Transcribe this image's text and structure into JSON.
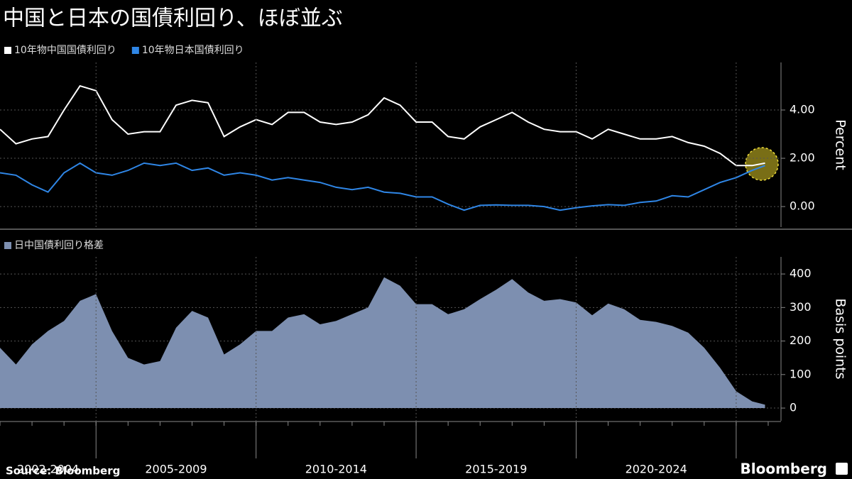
{
  "title": "中国と日本の国債利回り、ほぼ並ぶ",
  "source": "Source: Bloomberg",
  "brand": "Bloomberg",
  "chart_data": [
    {
      "type": "line",
      "y_label": "Percent",
      "x": [
        2002.0,
        2002.5,
        2003.0,
        2003.5,
        2004.0,
        2004.5,
        2005.0,
        2005.5,
        2006.0,
        2006.5,
        2007.0,
        2007.5,
        2008.0,
        2008.5,
        2009.0,
        2009.5,
        2010.0,
        2010.5,
        2011.0,
        2011.5,
        2012.0,
        2012.5,
        2013.0,
        2013.5,
        2014.0,
        2014.5,
        2015.0,
        2015.5,
        2016.0,
        2016.5,
        2017.0,
        2017.5,
        2018.0,
        2018.5,
        2019.0,
        2019.5,
        2020.0,
        2020.5,
        2021.0,
        2021.5,
        2022.0,
        2022.5,
        2023.0,
        2023.5,
        2024.0,
        2024.5,
        2025.0,
        2025.5,
        2025.9
      ],
      "series": [
        {
          "name": "10年物中国国債利回り",
          "color": "#ffffff",
          "values": [
            3.2,
            2.6,
            2.8,
            2.9,
            4.0,
            5.0,
            4.8,
            3.6,
            3.0,
            3.1,
            3.1,
            4.2,
            4.4,
            4.3,
            2.9,
            3.3,
            3.6,
            3.4,
            3.9,
            3.9,
            3.5,
            3.4,
            3.5,
            3.8,
            4.5,
            4.2,
            3.5,
            3.5,
            2.9,
            2.8,
            3.3,
            3.6,
            3.9,
            3.5,
            3.2,
            3.1,
            3.1,
            2.8,
            3.2,
            3.0,
            2.8,
            2.8,
            2.9,
            2.65,
            2.5,
            2.2,
            1.7,
            1.7,
            1.8
          ]
        },
        {
          "name": "10年物日本国債利回り",
          "color": "#2f86e6",
          "values": [
            1.4,
            1.3,
            0.9,
            0.6,
            1.4,
            1.8,
            1.4,
            1.3,
            1.5,
            1.8,
            1.7,
            1.8,
            1.5,
            1.6,
            1.3,
            1.4,
            1.3,
            1.1,
            1.2,
            1.1,
            1.0,
            0.8,
            0.7,
            0.8,
            0.6,
            0.55,
            0.4,
            0.4,
            0.1,
            -0.15,
            0.05,
            0.07,
            0.05,
            0.05,
            0.0,
            -0.15,
            -0.05,
            0.03,
            0.08,
            0.05,
            0.17,
            0.23,
            0.45,
            0.4,
            0.7,
            1.0,
            1.2,
            1.5,
            1.7
          ]
        }
      ],
      "xlim": [
        2002,
        2026.4
      ],
      "ylim": [
        -0.85,
        5.97
      ],
      "yticks": [
        {
          "value": 0,
          "label": "0.00"
        },
        {
          "value": 2,
          "label": "2.00"
        },
        {
          "value": 4,
          "label": "4.00"
        }
      ],
      "grid": true
    },
    {
      "type": "area",
      "y_label": "Basis points",
      "x": [
        2002.0,
        2002.5,
        2003.0,
        2003.5,
        2004.0,
        2004.5,
        2005.0,
        2005.5,
        2006.0,
        2006.5,
        2007.0,
        2007.5,
        2008.0,
        2008.5,
        2009.0,
        2009.5,
        2010.0,
        2010.5,
        2011.0,
        2011.5,
        2012.0,
        2012.5,
        2013.0,
        2013.5,
        2014.0,
        2014.5,
        2015.0,
        2015.5,
        2016.0,
        2016.5,
        2017.0,
        2017.5,
        2018.0,
        2018.5,
        2019.0,
        2019.5,
        2020.0,
        2020.5,
        2021.0,
        2021.5,
        2022.0,
        2022.5,
        2023.0,
        2023.5,
        2024.0,
        2024.5,
        2025.0,
        2025.5,
        2025.9
      ],
      "series": [
        {
          "name": "日中国債利回り格差",
          "color": "#7d8fb0",
          "values": [
            180,
            130,
            190,
            230,
            260,
            320,
            340,
            230,
            150,
            130,
            140,
            240,
            290,
            270,
            160,
            190,
            230,
            230,
            270,
            280,
            250,
            260,
            280,
            300,
            390,
            365,
            310,
            310,
            280,
            295,
            325,
            353,
            385,
            345,
            320,
            325,
            315,
            277,
            312,
            295,
            263,
            257,
            245,
            225,
            180,
            120,
            50,
            20,
            10
          ]
        }
      ],
      "xlim": [
        2002,
        2026.4
      ],
      "ylim": [
        -38,
        451
      ],
      "yticks": [
        0,
        100,
        200,
        300,
        400
      ],
      "grid": true,
      "periods": [
        {
          "start": 2002,
          "end": 2005,
          "label": "2002-2004"
        },
        {
          "start": 2005,
          "end": 2010,
          "label": "2005-2009"
        },
        {
          "start": 2010,
          "end": 2015,
          "label": "2010-2014"
        },
        {
          "start": 2015,
          "end": 2020,
          "label": "2015-2019"
        },
        {
          "start": 2020,
          "end": 2025,
          "label": "2020-2024"
        }
      ]
    }
  ]
}
